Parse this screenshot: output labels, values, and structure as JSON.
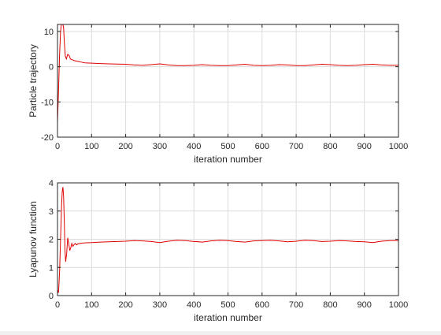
{
  "colors": {
    "series": "#e00000",
    "axis": "#262626",
    "grid": "#dcdcdc",
    "background": "#ffffff"
  },
  "chart_data": [
    {
      "type": "line",
      "title": "",
      "xlabel": "iteration number",
      "ylabel": "Particle trajectory",
      "xlim": [
        0,
        1000
      ],
      "ylim": [
        -20,
        12
      ],
      "xticks": [
        0,
        100,
        200,
        300,
        400,
        500,
        600,
        700,
        800,
        900,
        1000
      ],
      "yticks": [
        -20,
        -10,
        0,
        10
      ],
      "grid": true,
      "series": [
        {
          "x": [
            0,
            3,
            6,
            9,
            12,
            15,
            18,
            20,
            23,
            26,
            30,
            34,
            38,
            42,
            46,
            50,
            60,
            70,
            80,
            100,
            125,
            150,
            175,
            200,
            225,
            250,
            275,
            300,
            325,
            350,
            375,
            400,
            425,
            450,
            475,
            500,
            525,
            550,
            575,
            600,
            625,
            650,
            675,
            700,
            725,
            750,
            775,
            800,
            825,
            850,
            875,
            900,
            925,
            950,
            975,
            1000
          ],
          "y": [
            -16,
            -7,
            3,
            10,
            12.5,
            12.5,
            11,
            7,
            3,
            2.2,
            3.5,
            3.2,
            2.2,
            2.0,
            1.9,
            1.7,
            1.5,
            1.3,
            1.1,
            1.0,
            0.9,
            0.8,
            0.75,
            0.7,
            0.5,
            0.4,
            0.6,
            0.8,
            0.5,
            0.3,
            0.3,
            0.4,
            0.6,
            0.4,
            0.3,
            0.3,
            0.5,
            0.7,
            0.4,
            0.3,
            0.4,
            0.6,
            0.5,
            0.3,
            0.3,
            0.5,
            0.7,
            0.6,
            0.4,
            0.3,
            0.4,
            0.6,
            0.7,
            0.5,
            0.4,
            0.4
          ]
        }
      ]
    },
    {
      "type": "line",
      "title": "",
      "xlabel": "iteration number",
      "ylabel": "Lyapunov function",
      "xlim": [
        0,
        1000
      ],
      "ylim": [
        0,
        4
      ],
      "xticks": [
        0,
        100,
        200,
        300,
        400,
        500,
        600,
        700,
        800,
        900,
        1000
      ],
      "yticks": [
        0,
        1,
        2,
        3,
        4
      ],
      "grid": true,
      "series": [
        {
          "x": [
            0,
            3,
            6,
            9,
            12,
            14,
            16,
            18,
            20,
            22,
            24,
            27,
            30,
            33,
            36,
            39,
            42,
            45,
            48,
            52,
            56,
            60,
            70,
            80,
            100,
            125,
            150,
            175,
            200,
            225,
            250,
            275,
            300,
            325,
            350,
            375,
            400,
            425,
            450,
            475,
            500,
            525,
            550,
            575,
            600,
            625,
            650,
            675,
            700,
            725,
            750,
            775,
            800,
            825,
            850,
            875,
            900,
            925,
            950,
            975,
            1000
          ],
          "y": [
            0.2,
            0.1,
            0.8,
            2.0,
            3.2,
            3.7,
            3.85,
            3.5,
            2.6,
            1.6,
            1.2,
            1.5,
            2.05,
            1.85,
            1.6,
            1.7,
            1.85,
            1.75,
            1.8,
            1.85,
            1.8,
            1.84,
            1.86,
            1.87,
            1.88,
            1.9,
            1.91,
            1.92,
            1.93,
            1.95,
            1.94,
            1.92,
            1.88,
            1.93,
            1.96,
            1.95,
            1.92,
            1.9,
            1.94,
            1.96,
            1.95,
            1.92,
            1.9,
            1.94,
            1.95,
            1.96,
            1.94,
            1.91,
            1.93,
            1.96,
            1.95,
            1.92,
            1.93,
            1.95,
            1.94,
            1.92,
            1.91,
            1.88,
            1.93,
            1.95,
            1.95
          ]
        }
      ]
    }
  ]
}
